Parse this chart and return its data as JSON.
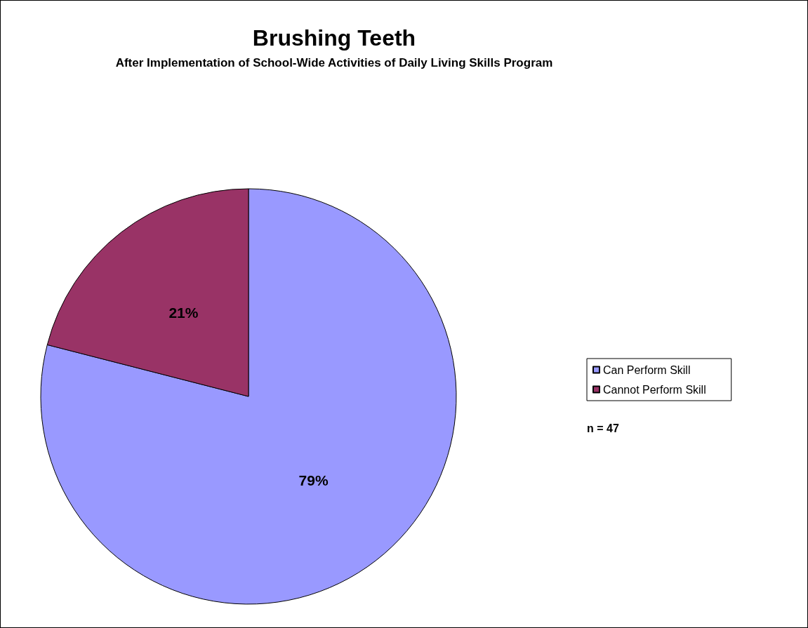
{
  "chart_data": {
    "type": "pie",
    "title": "Brushing Teeth",
    "subtitle": "After Implementation of School-Wide Activities of Daily Living Skills Program",
    "categories": [
      "Can Perform Skill",
      "Cannot Perform Skill"
    ],
    "values": [
      79,
      21
    ],
    "colors": [
      "#9999ff",
      "#993366"
    ],
    "value_labels": [
      "79%",
      "21%"
    ],
    "legend": "right",
    "annotations": [
      "n = 47"
    ]
  }
}
